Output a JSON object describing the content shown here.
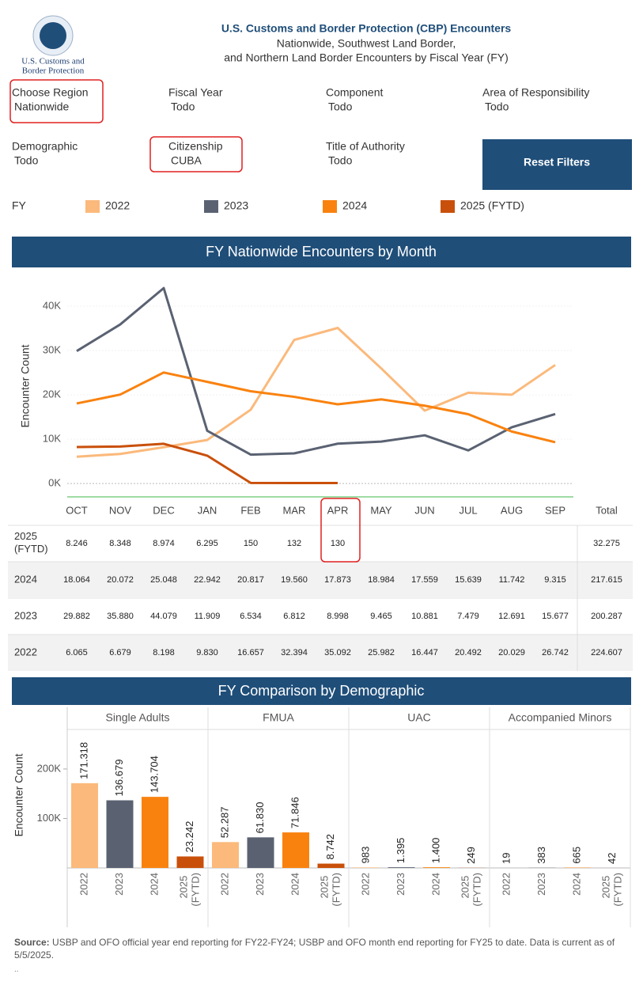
{
  "header": {
    "logo_lines": [
      "U.S. Customs and",
      "Border Protection"
    ],
    "title": "U.S. Customs and Border Protection (CBP) Encounters",
    "subtitle_1": "Nationwide, Southwest Land Border,",
    "subtitle_2": "and Northern Land Border Encounters by Fiscal Year (FY)"
  },
  "filters": [
    {
      "label": "Choose Region",
      "value": "Nationwide"
    },
    {
      "label": "Fiscal Year",
      "value": "Todo"
    },
    {
      "label": "Component",
      "value": "Todo"
    },
    {
      "label": "Area of Responsibility",
      "value": "Todo"
    },
    {
      "label": "Demographic",
      "value": "Todo"
    },
    {
      "label": "Citizenship",
      "value": "CUBA"
    },
    {
      "label": "Title of Authority",
      "value": "Todo"
    }
  ],
  "reset_button": "Reset Filters",
  "legend_label": "FY",
  "chart_data": [
    {
      "type": "line",
      "title": "FY Nationwide Encounters by Month",
      "y_label": "Encounter Count",
      "categories": [
        "OCT",
        "NOV",
        "DEC",
        "JAN",
        "FEB",
        "MAR",
        "APR",
        "MAY",
        "JUN",
        "JUL",
        "AUG",
        "SEP"
      ],
      "total_header": "Total",
      "ylim": [
        -3000,
        46600
      ],
      "yticks": [
        {
          "value": 0,
          "label": "0K"
        },
        {
          "value": 10000,
          "label": "10K"
        },
        {
          "value": 20000,
          "label": "20K"
        },
        {
          "value": 30000,
          "label": "30K"
        },
        {
          "value": 40000,
          "label": "40K"
        }
      ],
      "series": [
        {
          "name": "2022",
          "color": "#fbb97b",
          "total": "224.607",
          "values": [
            6065,
            6679,
            8198,
            9830,
            16657,
            32394,
            35092,
            25982,
            16447,
            20492,
            20029,
            26742
          ],
          "value_labels": [
            "6.065",
            "6.679",
            "8.198",
            "9.830",
            "16.657",
            "32.394",
            "35.092",
            "25.982",
            "16.447",
            "20.492",
            "20.029",
            "26.742"
          ]
        },
        {
          "name": "2023",
          "color": "#5a6272",
          "total": "200.287",
          "values": [
            29882,
            35880,
            44079,
            11909,
            6534,
            6812,
            8998,
            9465,
            10881,
            7479,
            12691,
            15677
          ],
          "value_labels": [
            "29.882",
            "35.880",
            "44.079",
            "11.909",
            "6.534",
            "6.812",
            "8.998",
            "9.465",
            "10.881",
            "7.479",
            "12.691",
            "15.677"
          ]
        },
        {
          "name": "2024",
          "color": "#f9820f",
          "total": "217.615",
          "values": [
            18064,
            20072,
            25048,
            22942,
            20817,
            19560,
            17873,
            18984,
            17559,
            15639,
            11742,
            9315
          ],
          "value_labels": [
            "18.064",
            "20.072",
            "25.048",
            "22.942",
            "20.817",
            "19.560",
            "17.873",
            "18.984",
            "17.559",
            "15.639",
            "11.742",
            "9.315"
          ]
        },
        {
          "name": "2025 (FYTD)",
          "color": "#c9500b",
          "total": "32.275",
          "values": [
            8246,
            8348,
            8974,
            6295,
            150,
            132,
            130,
            null,
            null,
            null,
            null,
            null
          ],
          "value_labels": [
            "8.246",
            "8.348",
            "8.974",
            "6.295",
            "150",
            "132",
            "130",
            null,
            null,
            null,
            null,
            null
          ]
        }
      ]
    },
    {
      "type": "bar",
      "title": "FY Comparison by Demographic",
      "y_label": "Encounter Count",
      "categories": [
        "2022",
        "2023",
        "2024",
        "2025 (FYTD)"
      ],
      "colors": [
        "#fbb97b",
        "#5a6272",
        "#f9820f",
        "#c9500b"
      ],
      "ylim": [
        0,
        323000
      ],
      "yticks": [
        {
          "value": 100000,
          "label": "100K"
        },
        {
          "value": 200000,
          "label": "200K"
        }
      ],
      "series": [
        {
          "name": "Single Adults",
          "values": [
            171318,
            136679,
            143704,
            23242
          ],
          "value_labels": [
            "171.318",
            "136.679",
            "143.704",
            "23.242"
          ]
        },
        {
          "name": "FMUA",
          "values": [
            52287,
            61830,
            71846,
            8742
          ],
          "value_labels": [
            "52.287",
            "61.830",
            "71.846",
            "8.742"
          ]
        },
        {
          "name": "UAC",
          "values": [
            983,
            1395,
            1400,
            249
          ],
          "value_labels": [
            "983",
            "1.395",
            "1.400",
            "249"
          ]
        },
        {
          "name": "Accompanied Minors",
          "values": [
            19,
            383,
            665,
            42
          ]
        }
      ]
    }
  ],
  "source": {
    "label": "Source:",
    "text": " USBP and OFO official year end reporting for FY22-FY24; USBP and OFO month end reporting for FY25 to date. Data is current as of 5/5/2025.",
    "footnote": ".."
  }
}
